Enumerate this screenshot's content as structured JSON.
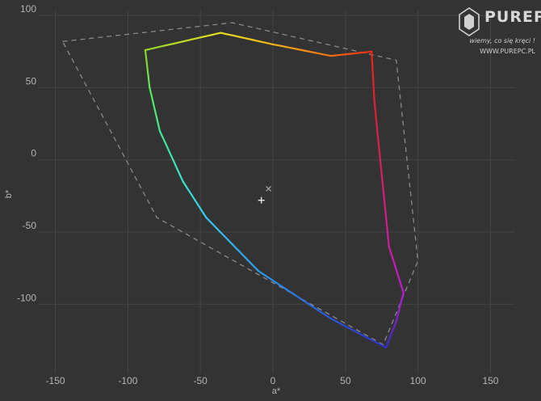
{
  "chart_data": {
    "type": "line",
    "xlabel": "a*",
    "ylabel": "b*",
    "xlim": [
      -162,
      167
    ],
    "ylim": [
      -148,
      104
    ],
    "x_ticks": [
      -150,
      -100,
      -50,
      0,
      50,
      100,
      150
    ],
    "y_ticks": [
      100,
      50,
      0,
      -50,
      -100
    ],
    "grid": true,
    "series": [
      {
        "style": "dashed",
        "color": "#8a8a8a",
        "points": [
          [
            -145,
            82
          ],
          [
            -28,
            95
          ],
          [
            85,
            69
          ],
          [
            100,
            -70
          ],
          [
            76,
            -128
          ],
          [
            -80,
            -40
          ],
          [
            -145,
            82
          ]
        ]
      },
      {
        "style": "solid-gradient",
        "points": [
          [
            -88,
            76,
            "#8fd22a"
          ],
          [
            -36,
            88,
            "#e8e020"
          ],
          [
            0,
            80,
            "#f2b21a"
          ],
          [
            40,
            72,
            "#f07010"
          ],
          [
            68,
            75,
            "#e82a1a"
          ],
          [
            70,
            40,
            "#dd2030"
          ],
          [
            80,
            -60,
            "#d21ca0"
          ],
          [
            90,
            -92,
            "#c018d8"
          ],
          [
            85,
            -112,
            "#7a22c8"
          ],
          [
            78,
            -130,
            "#3030c8"
          ],
          [
            40,
            -110,
            "#2c55d8"
          ],
          [
            -10,
            -77,
            "#2a9ae8"
          ],
          [
            -46,
            -40,
            "#38c8f0"
          ],
          [
            -62,
            -15,
            "#3ae0c8"
          ],
          [
            -78,
            20,
            "#40e890"
          ],
          [
            -85,
            50,
            "#58e85a"
          ],
          [
            -88,
            76,
            "#8fd22a"
          ]
        ]
      }
    ],
    "markers": [
      {
        "symbol": "plus",
        "x": -8,
        "y": -28
      },
      {
        "symbol": "cross",
        "x": -3,
        "y": -20
      }
    ]
  },
  "logo": {
    "brand": "PUREPC",
    "tagline": "wiemy, co się kręci !",
    "url": "WWW.PUREPC.PL"
  }
}
